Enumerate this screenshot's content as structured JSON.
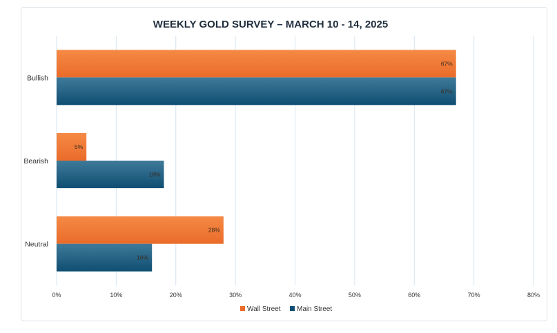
{
  "chart_data": {
    "type": "bar",
    "orientation": "horizontal",
    "title": "WEEKLY GOLD SURVEY – MARCH 10 - 14, 2025",
    "categories": [
      "Bullish",
      "Bearish",
      "Neutral"
    ],
    "series": [
      {
        "name": "Wall Street",
        "values": [
          67,
          5,
          28
        ],
        "labels": [
          "67%",
          "5%",
          "28%"
        ],
        "color_top": "#f58a45",
        "color_bottom": "#ea6b2a"
      },
      {
        "name": "Main Street",
        "values": [
          67,
          18,
          16
        ],
        "labels": [
          "67%",
          "18%",
          "16%"
        ],
        "color_top": "#3f7a99",
        "color_bottom": "#0f4e72"
      }
    ],
    "xlim": [
      0,
      80
    ],
    "xticks": [
      "0%",
      "10%",
      "20%",
      "30%",
      "40%",
      "50%",
      "60%",
      "70%",
      "80%"
    ],
    "grid": true,
    "legend_position": "bottom"
  }
}
